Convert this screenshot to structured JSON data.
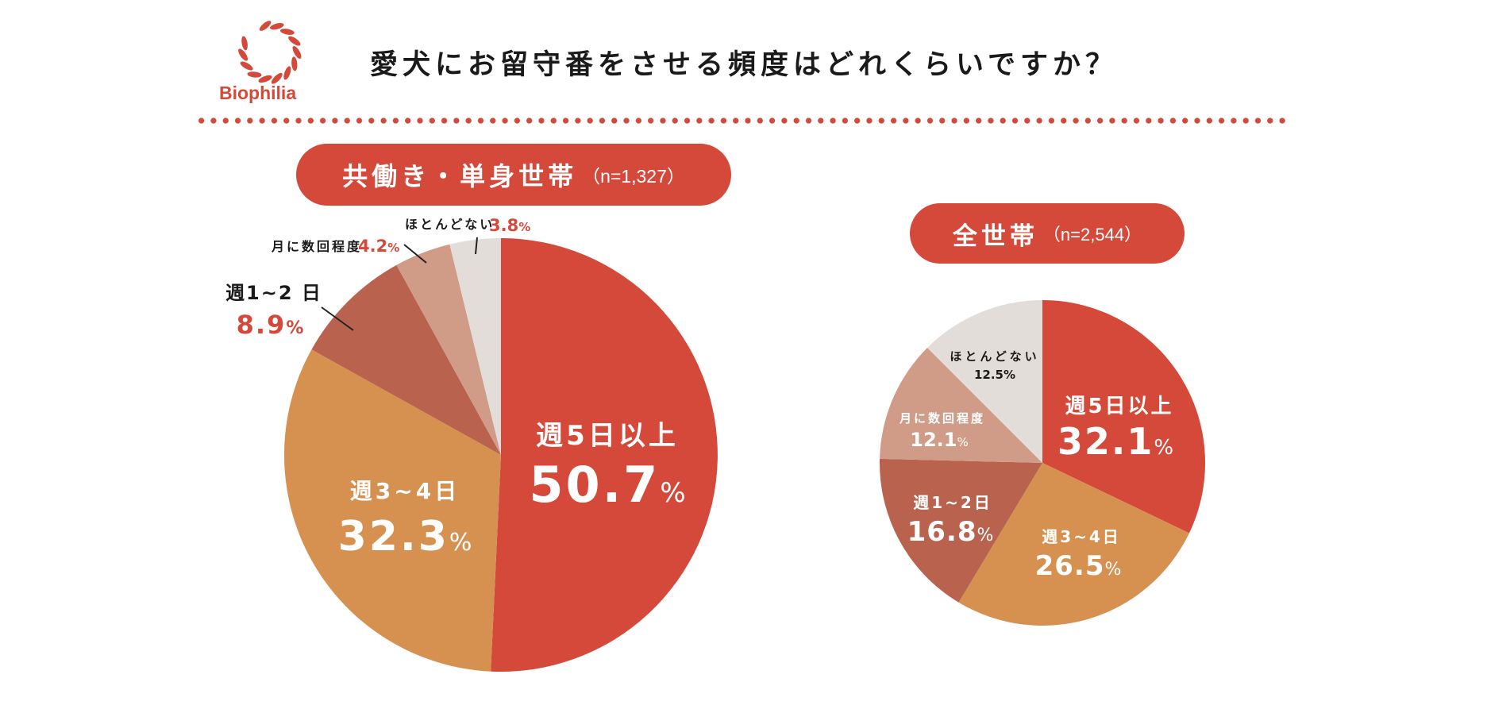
{
  "brand": {
    "name": "Biophilia",
    "color": "#d5493a"
  },
  "title": "愛犬にお留守番をさせる頻度はどれくらいですか？",
  "colors": {
    "accent": "#d5493a",
    "slice_5plus": "#d5493a",
    "slice_3to4": "#d69150",
    "slice_1to2": "#b9634f",
    "slice_monthly": "#d09c88",
    "slice_rarely": "#e2ddd8",
    "outside_value": "#d5493a",
    "outside_label": "#1a1a1a",
    "inside_text": "#ffffff"
  },
  "groups": {
    "left": {
      "name": "共働き・単身世帯",
      "n_label": "（n=1,327）"
    },
    "right": {
      "name": "全世帯",
      "n_label": "（n=2,544）"
    }
  },
  "chart_data": [
    {
      "type": "pie",
      "title": "共働き・単身世帯（n=1,327）",
      "categories": [
        "週5日以上",
        "週3~4日",
        "週1~2 日",
        "月に数回程度",
        "ほとんどない"
      ],
      "values": [
        50.7,
        32.3,
        8.9,
        4.2,
        3.8
      ],
      "value_labels": [
        "50.7%",
        "32.3%",
        "8.9%",
        "4.2%",
        "3.8%"
      ],
      "unit": "%",
      "start": "top",
      "direction": "clockwise",
      "label_placement": [
        "inside",
        "inside",
        "outside",
        "outside",
        "outside"
      ]
    },
    {
      "type": "pie",
      "title": "全世帯（n=2,544）",
      "categories": [
        "週5日以上",
        "週3~4日",
        "週1~2日",
        "月に数回程度",
        "ほとんどない"
      ],
      "values": [
        32.1,
        26.5,
        16.8,
        12.1,
        12.5
      ],
      "value_labels": [
        "32.1%",
        "26.5%",
        "16.8%",
        "12.1%",
        "12.5%"
      ],
      "unit": "%",
      "start": "top",
      "direction": "clockwise",
      "label_placement": [
        "inside",
        "inside",
        "inside",
        "inside",
        "inside"
      ]
    }
  ]
}
